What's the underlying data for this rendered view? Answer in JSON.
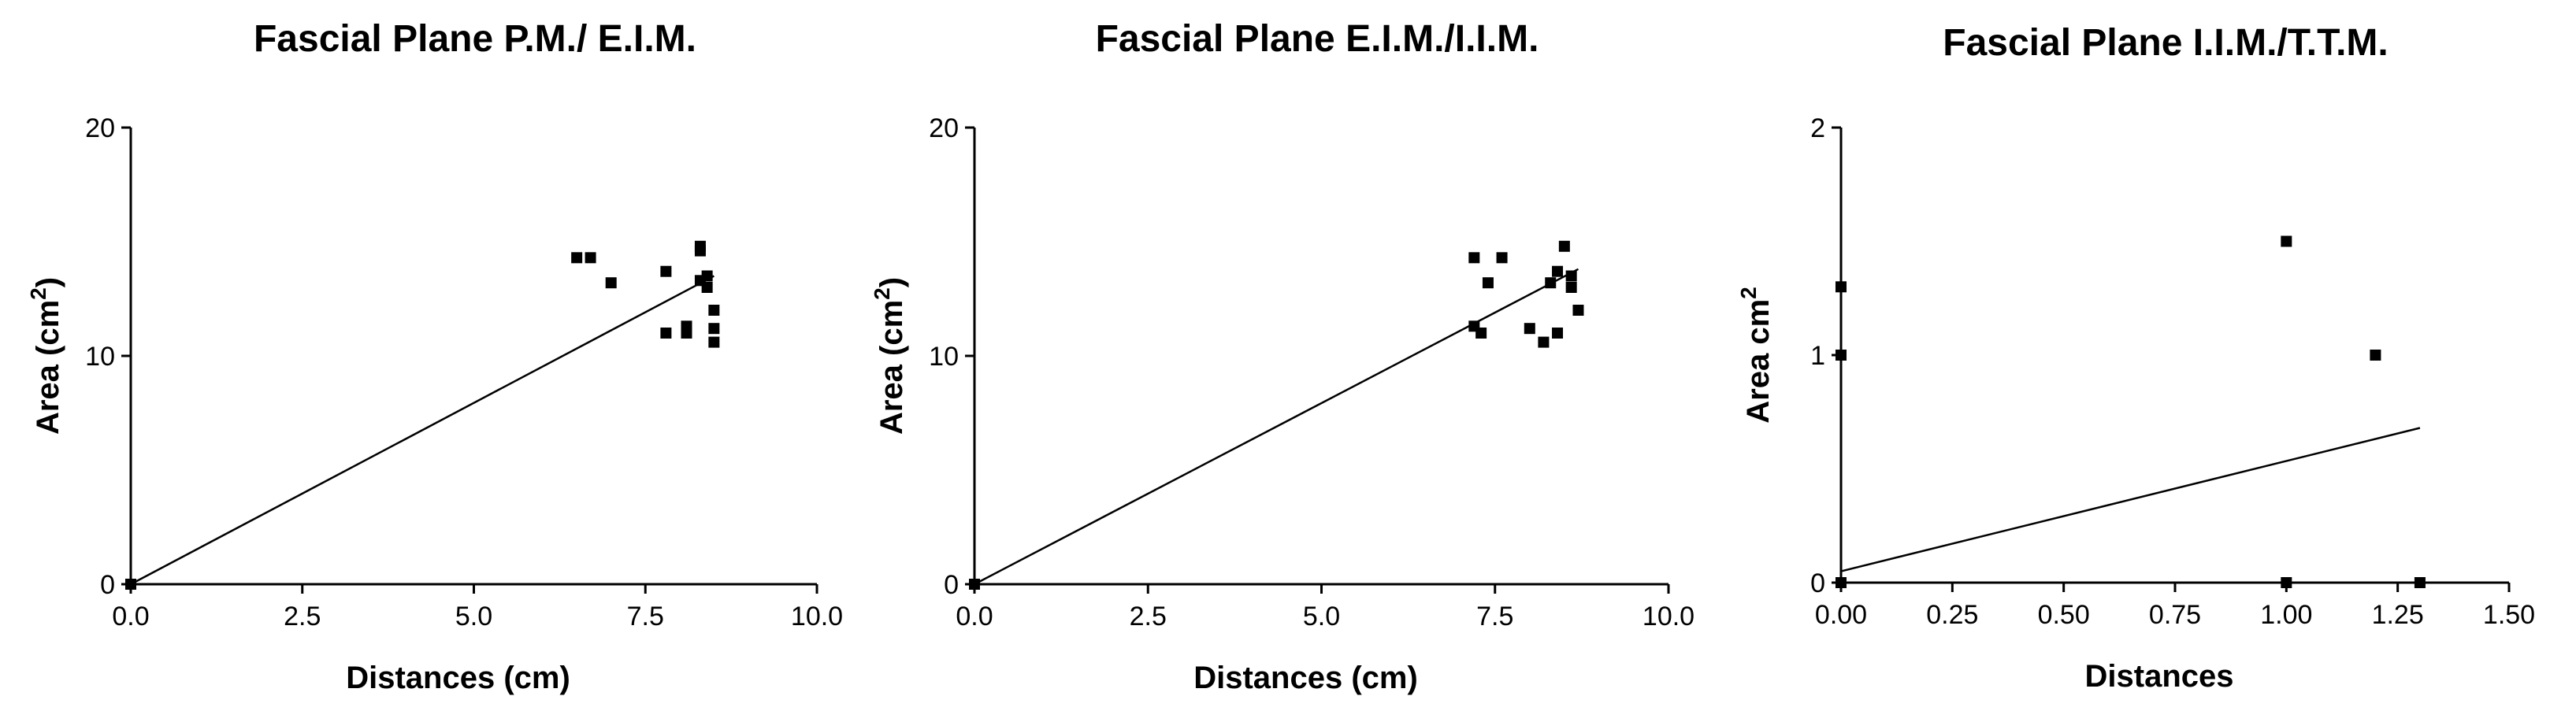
{
  "chart_data": [
    {
      "type": "scatter",
      "title": "Fascial Plane P.M./ E.I.M.",
      "xlabel": "Distances (cm)",
      "ylabel": "Area (cm",
      "ylabel_sup": "2",
      "ylabel_suffix": ")",
      "xlim": [
        0,
        10
      ],
      "ylim": [
        0,
        20
      ],
      "xticks": [
        0,
        2.5,
        5,
        7.5,
        10
      ],
      "xtick_labels": [
        "0.0",
        "2.5",
        "5.0",
        "7.5",
        "10.0"
      ],
      "yticks": [
        0,
        10,
        20
      ],
      "ytick_labels": [
        "0",
        "10",
        "20"
      ],
      "grid": false,
      "points": [
        {
          "x": 0,
          "y": 0
        },
        {
          "x": 6.5,
          "y": 14.3
        },
        {
          "x": 6.7,
          "y": 14.3
        },
        {
          "x": 7.0,
          "y": 13.2
        },
        {
          "x": 7.8,
          "y": 13.7
        },
        {
          "x": 7.8,
          "y": 11.0
        },
        {
          "x": 8.1,
          "y": 11.0
        },
        {
          "x": 8.1,
          "y": 11.3
        },
        {
          "x": 8.3,
          "y": 14.8
        },
        {
          "x": 8.3,
          "y": 14.6
        },
        {
          "x": 8.3,
          "y": 13.3
        },
        {
          "x": 8.4,
          "y": 13.5
        },
        {
          "x": 8.4,
          "y": 13.0
        },
        {
          "x": 8.5,
          "y": 12.0
        },
        {
          "x": 8.5,
          "y": 11.2
        },
        {
          "x": 8.5,
          "y": 10.6
        }
      ],
      "fit_line": {
        "x": [
          0,
          8.5
        ],
        "y": [
          0,
          13.5
        ]
      }
    },
    {
      "type": "scatter",
      "title": "Fascial Plane E.I.M./I.I.M.",
      "xlabel": "Distances (cm)",
      "ylabel": "Area (cm",
      "ylabel_sup": "2",
      "ylabel_suffix": ")",
      "xlim": [
        0,
        10
      ],
      "ylim": [
        0,
        20
      ],
      "xticks": [
        0,
        2.5,
        5,
        7.5,
        10
      ],
      "xtick_labels": [
        "0.0",
        "2.5",
        "5.0",
        "7.5",
        "10.0"
      ],
      "yticks": [
        0,
        10,
        20
      ],
      "ytick_labels": [
        "0",
        "10",
        "20"
      ],
      "grid": false,
      "points": [
        {
          "x": 0,
          "y": 0
        },
        {
          "x": 7.2,
          "y": 14.3
        },
        {
          "x": 7.2,
          "y": 11.3
        },
        {
          "x": 7.3,
          "y": 11.0
        },
        {
          "x": 7.4,
          "y": 13.2
        },
        {
          "x": 7.6,
          "y": 14.3
        },
        {
          "x": 8.0,
          "y": 11.2
        },
        {
          "x": 8.2,
          "y": 10.6
        },
        {
          "x": 8.3,
          "y": 13.2
        },
        {
          "x": 8.4,
          "y": 13.7
        },
        {
          "x": 8.4,
          "y": 11.0
        },
        {
          "x": 8.5,
          "y": 14.8
        },
        {
          "x": 8.6,
          "y": 13.5
        },
        {
          "x": 8.6,
          "y": 13.0
        },
        {
          "x": 8.7,
          "y": 12.0
        }
      ],
      "fit_line": {
        "x": [
          0,
          8.7
        ],
        "y": [
          0,
          13.8
        ]
      }
    },
    {
      "type": "scatter",
      "title": "Fascial Plane I.I.M./T.T.M.",
      "xlabel": "Distances",
      "ylabel": "Area cm",
      "ylabel_sup": "2",
      "ylabel_suffix": "",
      "xlim": [
        0,
        1.5
      ],
      "ylim": [
        0,
        2
      ],
      "xticks": [
        0,
        0.25,
        0.5,
        0.75,
        1,
        1.25,
        1.5
      ],
      "xtick_labels": [
        "0.00",
        "0.25",
        "0.50",
        "0.75",
        "1.00",
        "1.25",
        "1.50"
      ],
      "yticks": [
        0,
        1,
        2
      ],
      "ytick_labels": [
        "0",
        "1",
        "2"
      ],
      "grid": false,
      "points": [
        {
          "x": 0,
          "y": 0
        },
        {
          "x": 0,
          "y": 1.0
        },
        {
          "x": 0,
          "y": 1.3
        },
        {
          "x": 1.0,
          "y": 1.5
        },
        {
          "x": 1.0,
          "y": 0
        },
        {
          "x": 1.2,
          "y": 1.0
        },
        {
          "x": 1.3,
          "y": 0
        }
      ],
      "fit_line": {
        "x": [
          0,
          1.3
        ],
        "y": [
          0.05,
          0.68
        ]
      }
    }
  ]
}
